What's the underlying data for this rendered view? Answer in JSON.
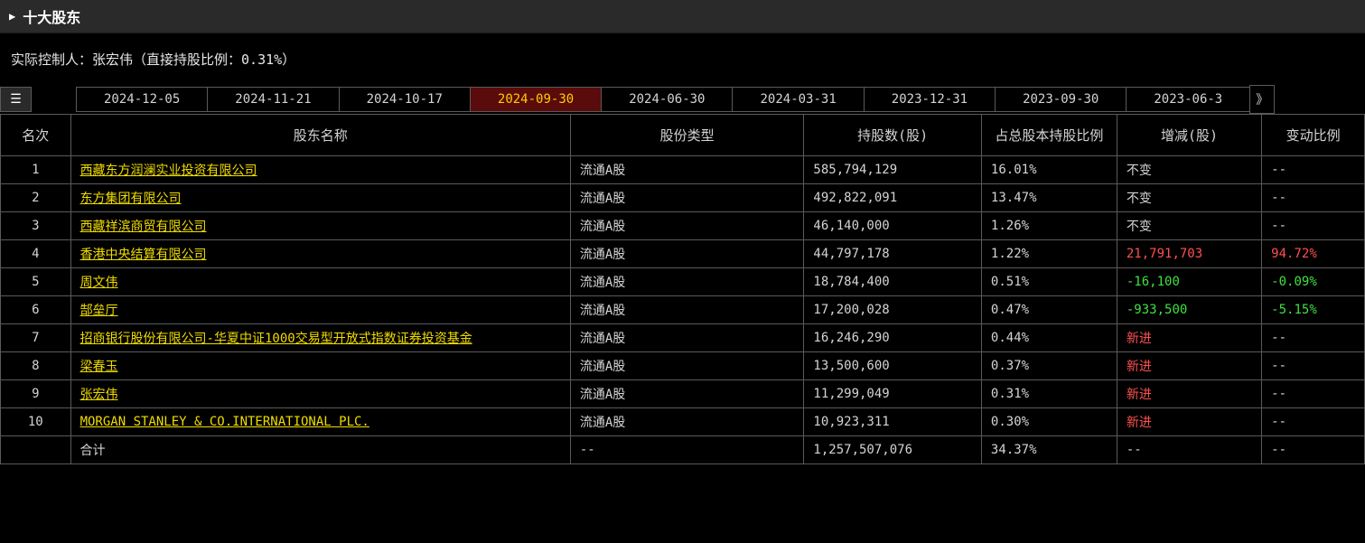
{
  "header": {
    "title": "十大股东"
  },
  "controller": {
    "text": "实际控制人：张宏伟（直接持股比例：0.31%）"
  },
  "tabs": {
    "items": [
      {
        "label": "2024-12-05",
        "active": false
      },
      {
        "label": "2024-11-21",
        "active": false
      },
      {
        "label": "2024-10-17",
        "active": false
      },
      {
        "label": "2024-09-30",
        "active": true
      },
      {
        "label": "2024-06-30",
        "active": false
      },
      {
        "label": "2024-03-31",
        "active": false
      },
      {
        "label": "2023-12-31",
        "active": false
      },
      {
        "label": "2023-09-30",
        "active": false
      },
      {
        "label": "2023-06-3",
        "active": false
      }
    ],
    "scroll_right": "》"
  },
  "table": {
    "columns": {
      "rank": "名次",
      "name": "股东名称",
      "type": "股份类型",
      "shares": "持股数(股)",
      "ratio": "占总股本持股比例",
      "change": "增减(股)",
      "pct": "变动比例"
    },
    "rows": [
      {
        "rank": "1",
        "name": "西藏东方润澜实业投资有限公司",
        "type": "流通A股",
        "shares": "585,794,129",
        "ratio": "16.01%",
        "change": "不变",
        "change_color": "",
        "pct": "--",
        "pct_color": ""
      },
      {
        "rank": "2",
        "name": "东方集团有限公司",
        "type": "流通A股",
        "shares": "492,822,091",
        "ratio": "13.47%",
        "change": "不变",
        "change_color": "",
        "pct": "--",
        "pct_color": ""
      },
      {
        "rank": "3",
        "name": "西藏祥滨商贸有限公司",
        "type": "流通A股",
        "shares": "46,140,000",
        "ratio": "1.26%",
        "change": "不变",
        "change_color": "",
        "pct": "--",
        "pct_color": ""
      },
      {
        "rank": "4",
        "name": "香港中央结算有限公司",
        "type": "流通A股",
        "shares": "44,797,178",
        "ratio": "1.22%",
        "change": "21,791,703",
        "change_color": "red",
        "pct": "94.72%",
        "pct_color": "red"
      },
      {
        "rank": "5",
        "name": "周文伟",
        "type": "流通A股",
        "shares": "18,784,400",
        "ratio": "0.51%",
        "change": "-16,100",
        "change_color": "green",
        "pct": "-0.09%",
        "pct_color": "green"
      },
      {
        "rank": "6",
        "name": "郜垒厅",
        "type": "流通A股",
        "shares": "17,200,028",
        "ratio": "0.47%",
        "change": "-933,500",
        "change_color": "green",
        "pct": "-5.15%",
        "pct_color": "green"
      },
      {
        "rank": "7",
        "name": "招商银行股份有限公司-华夏中证1000交易型开放式指数证券投资基金",
        "type": "流通A股",
        "shares": "16,246,290",
        "ratio": "0.44%",
        "change": "新进",
        "change_color": "red",
        "pct": "--",
        "pct_color": ""
      },
      {
        "rank": "8",
        "name": "梁春玉",
        "type": "流通A股",
        "shares": "13,500,600",
        "ratio": "0.37%",
        "change": "新进",
        "change_color": "red",
        "pct": "--",
        "pct_color": ""
      },
      {
        "rank": "9",
        "name": "张宏伟",
        "type": "流通A股",
        "shares": "11,299,049",
        "ratio": "0.31%",
        "change": "新进",
        "change_color": "red",
        "pct": "--",
        "pct_color": ""
      },
      {
        "rank": "10",
        "name": "MORGAN STANLEY & CO.INTERNATIONAL PLC.",
        "type": "流通A股",
        "shares": "10,923,311",
        "ratio": "0.30%",
        "change": "新进",
        "change_color": "red",
        "pct": "--",
        "pct_color": ""
      }
    ],
    "total": {
      "rank": "",
      "name": "合计",
      "type": "--",
      "shares": "1,257,507,076",
      "ratio": "34.37%",
      "change": "--",
      "pct": "--"
    }
  },
  "colors": {
    "background": "#000000",
    "text_normal": "#d4d4d4",
    "text_yellow": "#f0dc00",
    "text_red": "#ff5050",
    "text_green": "#40e040",
    "border": "#5a5a5a",
    "tab_active_bg": "#5a0b0b",
    "tab_active_text": "#ffcc00",
    "header_bg": "#2a2a2a"
  }
}
